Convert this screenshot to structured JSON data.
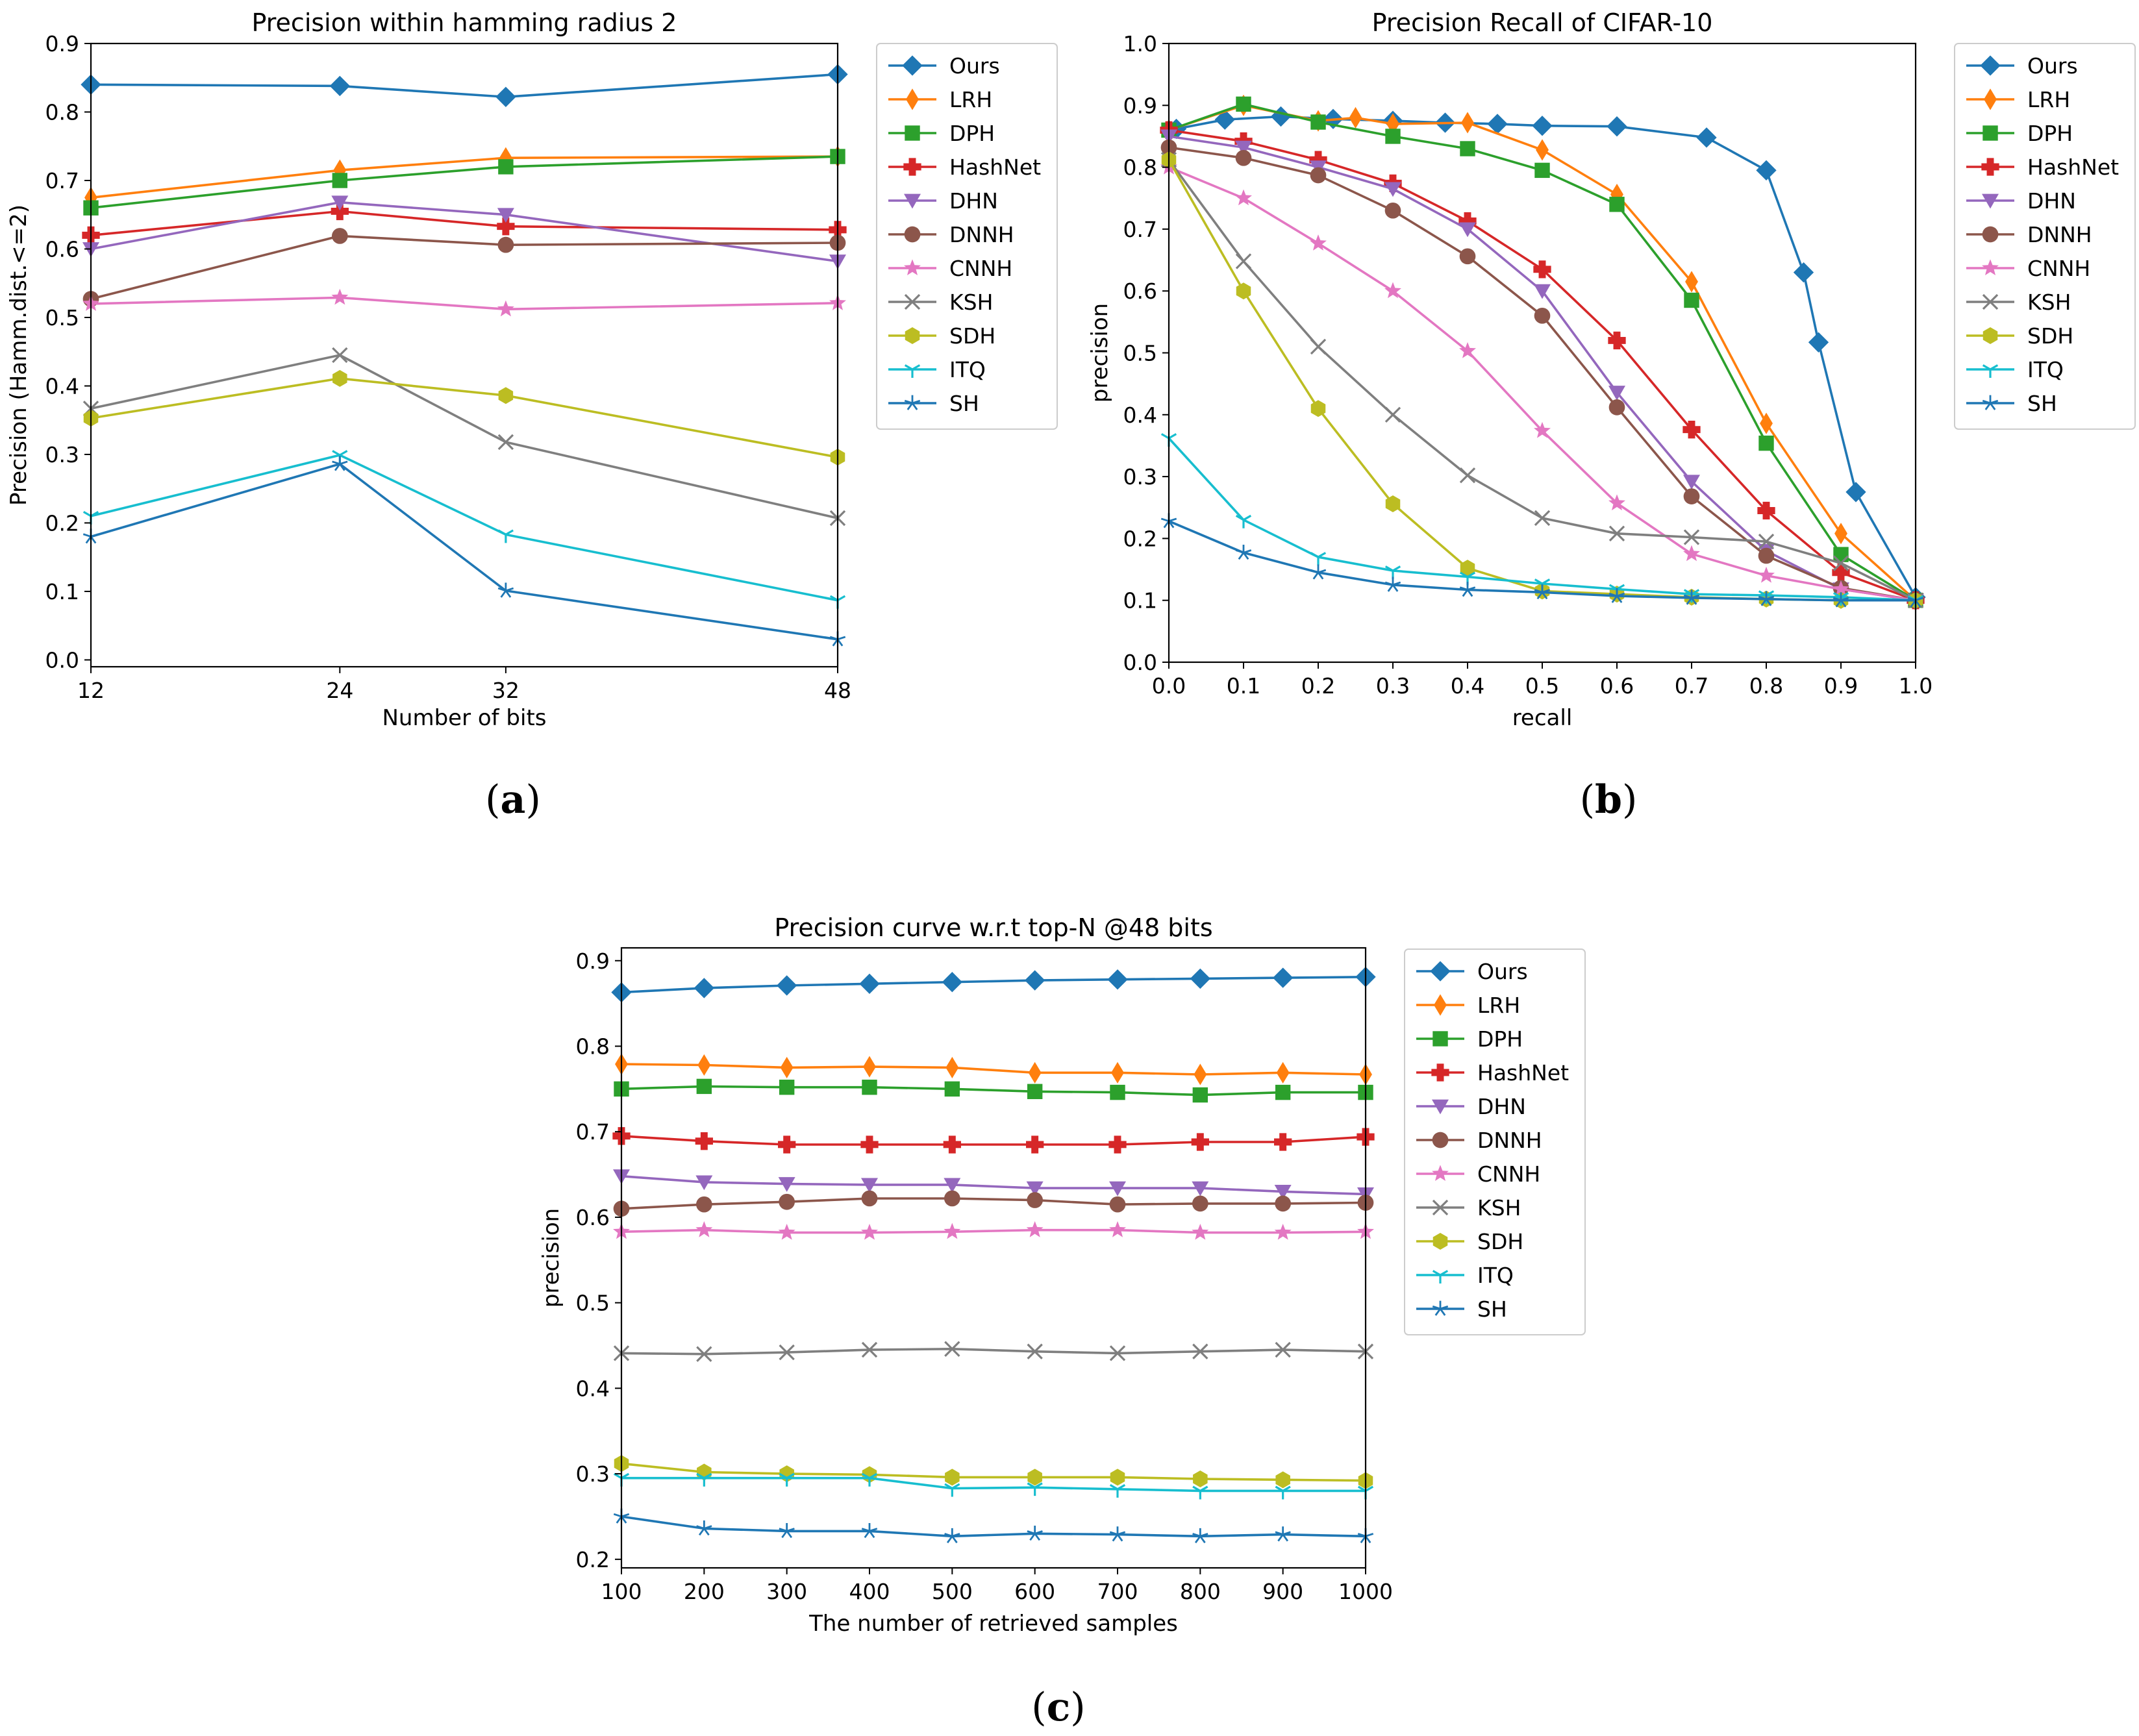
{
  "series_meta": [
    {
      "name": "Ours",
      "color": "#1f77b4",
      "marker": "diamond"
    },
    {
      "name": "LRH",
      "color": "#ff7f0e",
      "marker": "thin-diamond"
    },
    {
      "name": "DPH",
      "color": "#2ca02c",
      "marker": "square"
    },
    {
      "name": "HashNet",
      "color": "#d62728",
      "marker": "plus"
    },
    {
      "name": "DHN",
      "color": "#9467bd",
      "marker": "triangle-down"
    },
    {
      "name": "DNNH",
      "color": "#8c564b",
      "marker": "circle"
    },
    {
      "name": "CNNH",
      "color": "#e377c2",
      "marker": "star"
    },
    {
      "name": "KSH",
      "color": "#7f7f7f",
      "marker": "x"
    },
    {
      "name": "SDH",
      "color": "#bcbd22",
      "marker": "hexagon"
    },
    {
      "name": "ITQ",
      "color": "#17becf",
      "marker": "tri-down"
    },
    {
      "name": "SH",
      "color": "#1f77b4",
      "marker": "tri-star"
    }
  ],
  "chart_data": [
    {
      "type": "line",
      "panel": "(a)",
      "title": "Precision within hamming radius 2",
      "xlabel": "Number of bits",
      "ylabel": "Precision (Hamm.dist.<=2)",
      "xlim": [
        12,
        48
      ],
      "ylim": [
        -0.01,
        0.9
      ],
      "xticks": [
        12,
        24,
        32,
        48
      ],
      "xtick_labels": [
        "12",
        "24",
        "32",
        "48"
      ],
      "yticks": [
        0.0,
        0.1,
        0.2,
        0.3,
        0.4,
        0.5,
        0.6,
        0.7,
        0.8,
        0.9
      ],
      "ytick_labels": [
        "0.0",
        "0.1",
        "0.2",
        "0.3",
        "0.4",
        "0.5",
        "0.6",
        "0.7",
        "0.8",
        "0.9"
      ],
      "legend": "outside-right",
      "grid": false,
      "x": [
        12,
        24,
        32,
        48
      ],
      "series": [
        {
          "name": "Ours",
          "values": [
            0.84,
            0.838,
            0.822,
            0.855
          ]
        },
        {
          "name": "LRH",
          "values": [
            0.675,
            0.715,
            0.733,
            0.735
          ]
        },
        {
          "name": "DPH",
          "values": [
            0.66,
            0.7,
            0.72,
            0.735
          ]
        },
        {
          "name": "HashNet",
          "values": [
            0.62,
            0.655,
            0.633,
            0.628
          ]
        },
        {
          "name": "DHN",
          "values": [
            0.6,
            0.668,
            0.65,
            0.582
          ]
        },
        {
          "name": "DNNH",
          "values": [
            0.527,
            0.619,
            0.606,
            0.609
          ]
        },
        {
          "name": "CNNH",
          "values": [
            0.52,
            0.529,
            0.512,
            0.521
          ]
        },
        {
          "name": "KSH",
          "values": [
            0.367,
            0.445,
            0.318,
            0.207
          ]
        },
        {
          "name": "SDH",
          "values": [
            0.353,
            0.411,
            0.386,
            0.296
          ]
        },
        {
          "name": "ITQ",
          "values": [
            0.21,
            0.299,
            0.183,
            0.087
          ]
        },
        {
          "name": "SH",
          "values": [
            0.18,
            0.286,
            0.101,
            0.03
          ]
        }
      ]
    },
    {
      "type": "line",
      "panel": "(b)",
      "title": "Precision Recall of CIFAR-10",
      "xlabel": "recall",
      "ylabel": "precision",
      "xlim": [
        0.0,
        1.0
      ],
      "ylim": [
        0.0,
        1.0
      ],
      "xticks": [
        0.0,
        0.1,
        0.2,
        0.3,
        0.4,
        0.5,
        0.6,
        0.7,
        0.8,
        0.9,
        1.0
      ],
      "xtick_labels": [
        "0.0",
        "0.1",
        "0.2",
        "0.3",
        "0.4",
        "0.5",
        "0.6",
        "0.7",
        "0.8",
        "0.9",
        "1.0"
      ],
      "yticks": [
        0.0,
        0.1,
        0.2,
        0.3,
        0.4,
        0.5,
        0.6,
        0.7,
        0.8,
        0.9,
        1.0
      ],
      "ytick_labels": [
        "0.0",
        "0.1",
        "0.2",
        "0.3",
        "0.4",
        "0.5",
        "0.6",
        "0.7",
        "0.8",
        "0.9",
        "1.0"
      ],
      "legend": "outside-right",
      "grid": false,
      "series": [
        {
          "name": "Ours",
          "x": [
            0.01,
            0.075,
            0.15,
            0.22,
            0.3,
            0.37,
            0.44,
            0.5,
            0.6,
            0.72,
            0.8,
            0.85,
            0.87,
            0.92,
            1.0
          ],
          "values": [
            0.862,
            0.877,
            0.882,
            0.878,
            0.875,
            0.872,
            0.87,
            0.867,
            0.866,
            0.848,
            0.795,
            0.63,
            0.517,
            0.275,
            0.105
          ]
        },
        {
          "name": "LRH",
          "x": [
            0.0,
            0.1,
            0.2,
            0.25,
            0.3,
            0.4,
            0.5,
            0.6,
            0.7,
            0.8,
            0.9,
            1.0
          ],
          "values": [
            0.86,
            0.9,
            0.875,
            0.88,
            0.87,
            0.872,
            0.828,
            0.756,
            0.615,
            0.386,
            0.208,
            0.1
          ]
        },
        {
          "name": "DPH",
          "x": [
            0.0,
            0.1,
            0.2,
            0.3,
            0.4,
            0.5,
            0.6,
            0.7,
            0.8,
            0.9,
            1.0
          ],
          "values": [
            0.86,
            0.902,
            0.873,
            0.85,
            0.83,
            0.795,
            0.74,
            0.585,
            0.354,
            0.174,
            0.1
          ]
        },
        {
          "name": "HashNet",
          "x": [
            0.0,
            0.1,
            0.2,
            0.3,
            0.4,
            0.5,
            0.6,
            0.7,
            0.8,
            0.9,
            1.0
          ],
          "values": [
            0.86,
            0.842,
            0.812,
            0.774,
            0.713,
            0.635,
            0.52,
            0.376,
            0.245,
            0.145,
            0.1
          ]
        },
        {
          "name": "DHN",
          "x": [
            0.0,
            0.1,
            0.2,
            0.3,
            0.4,
            0.5,
            0.6,
            0.7,
            0.8,
            0.9,
            1.0
          ],
          "values": [
            0.85,
            0.832,
            0.8,
            0.765,
            0.7,
            0.6,
            0.436,
            0.292,
            0.18,
            0.118,
            0.1
          ]
        },
        {
          "name": "DNNH",
          "x": [
            0.0,
            0.1,
            0.2,
            0.3,
            0.4,
            0.5,
            0.6,
            0.7,
            0.8,
            0.9,
            1.0
          ],
          "values": [
            0.832,
            0.815,
            0.787,
            0.73,
            0.656,
            0.56,
            0.412,
            0.268,
            0.172,
            0.12,
            0.1
          ]
        },
        {
          "name": "CNNH",
          "x": [
            0.0,
            0.1,
            0.2,
            0.3,
            0.4,
            0.5,
            0.6,
            0.7,
            0.8,
            0.9,
            1.0
          ],
          "values": [
            0.8,
            0.75,
            0.677,
            0.6,
            0.503,
            0.374,
            0.257,
            0.175,
            0.14,
            0.118,
            0.1
          ]
        },
        {
          "name": "KSH",
          "x": [
            0.0,
            0.1,
            0.2,
            0.3,
            0.4,
            0.5,
            0.6,
            0.7,
            0.8,
            0.9,
            1.0
          ],
          "values": [
            0.812,
            0.648,
            0.51,
            0.4,
            0.302,
            0.233,
            0.208,
            0.202,
            0.195,
            0.16,
            0.1
          ]
        },
        {
          "name": "SDH",
          "x": [
            0.0,
            0.1,
            0.2,
            0.3,
            0.4,
            0.5,
            0.6,
            0.7,
            0.8,
            0.9,
            1.0
          ],
          "values": [
            0.812,
            0.6,
            0.41,
            0.256,
            0.152,
            0.115,
            0.11,
            0.105,
            0.102,
            0.1,
            0.1
          ]
        },
        {
          "name": "ITQ",
          "x": [
            0.0,
            0.1,
            0.2,
            0.3,
            0.4,
            0.5,
            0.6,
            0.7,
            0.8,
            0.9,
            1.0
          ],
          "values": [
            0.362,
            0.23,
            0.17,
            0.148,
            0.138,
            0.127,
            0.118,
            0.11,
            0.108,
            0.105,
            0.1
          ]
        },
        {
          "name": "SH",
          "x": [
            0.0,
            0.1,
            0.2,
            0.3,
            0.4,
            0.5,
            0.6,
            0.7,
            0.8,
            0.9,
            1.0
          ],
          "values": [
            0.228,
            0.177,
            0.145,
            0.125,
            0.117,
            0.113,
            0.107,
            0.104,
            0.102,
            0.1,
            0.1
          ]
        }
      ]
    },
    {
      "type": "line",
      "panel": "(c)",
      "title": "Precision curve w.r.t top-N @48 bits",
      "xlabel": "The number of retrieved samples",
      "ylabel": "precision",
      "xlim": [
        100,
        1000
      ],
      "ylim": [
        0.19,
        0.915
      ],
      "xticks": [
        100,
        200,
        300,
        400,
        500,
        600,
        700,
        800,
        900,
        1000
      ],
      "xtick_labels": [
        "100",
        "200",
        "300",
        "400",
        "500",
        "600",
        "700",
        "800",
        "900",
        "1000"
      ],
      "yticks": [
        0.2,
        0.3,
        0.4,
        0.5,
        0.6,
        0.7,
        0.8,
        0.9
      ],
      "ytick_labels": [
        "0.2",
        "0.3",
        "0.4",
        "0.5",
        "0.6",
        "0.7",
        "0.8",
        "0.9"
      ],
      "legend": "outside-right",
      "grid": false,
      "x": [
        100,
        200,
        300,
        400,
        500,
        600,
        700,
        800,
        900,
        1000
      ],
      "series": [
        {
          "name": "Ours",
          "values": [
            0.863,
            0.868,
            0.871,
            0.873,
            0.875,
            0.877,
            0.878,
            0.879,
            0.88,
            0.881
          ]
        },
        {
          "name": "LRH",
          "values": [
            0.779,
            0.778,
            0.775,
            0.776,
            0.775,
            0.769,
            0.769,
            0.767,
            0.769,
            0.767
          ]
        },
        {
          "name": "DPH",
          "values": [
            0.75,
            0.753,
            0.752,
            0.752,
            0.75,
            0.747,
            0.746,
            0.743,
            0.746,
            0.746
          ]
        },
        {
          "name": "HashNet",
          "values": [
            0.695,
            0.689,
            0.685,
            0.685,
            0.685,
            0.685,
            0.685,
            0.688,
            0.688,
            0.694
          ]
        },
        {
          "name": "DHN",
          "values": [
            0.648,
            0.641,
            0.639,
            0.638,
            0.638,
            0.634,
            0.634,
            0.634,
            0.63,
            0.627
          ]
        },
        {
          "name": "DNNH",
          "values": [
            0.61,
            0.615,
            0.618,
            0.622,
            0.622,
            0.62,
            0.615,
            0.616,
            0.616,
            0.617
          ]
        },
        {
          "name": "CNNH",
          "values": [
            0.583,
            0.585,
            0.582,
            0.582,
            0.583,
            0.585,
            0.585,
            0.582,
            0.582,
            0.583
          ]
        },
        {
          "name": "KSH",
          "values": [
            0.441,
            0.44,
            0.442,
            0.445,
            0.446,
            0.443,
            0.441,
            0.443,
            0.445,
            0.443
          ]
        },
        {
          "name": "SDH",
          "values": [
            0.312,
            0.302,
            0.3,
            0.299,
            0.296,
            0.296,
            0.296,
            0.294,
            0.293,
            0.292
          ]
        },
        {
          "name": "ITQ",
          "values": [
            0.295,
            0.295,
            0.295,
            0.295,
            0.283,
            0.284,
            0.282,
            0.28,
            0.28,
            0.28
          ]
        },
        {
          "name": "SH",
          "values": [
            0.25,
            0.236,
            0.233,
            0.233,
            0.227,
            0.23,
            0.229,
            0.227,
            0.229,
            0.227
          ]
        }
      ]
    }
  ],
  "captions": {
    "a": {
      "paren_open": "(",
      "letter": "a",
      "paren_close": ")"
    },
    "b": {
      "paren_open": "(",
      "letter": "b",
      "paren_close": ")"
    },
    "c": {
      "paren_open": "(",
      "letter": "c",
      "paren_close": ")"
    }
  }
}
